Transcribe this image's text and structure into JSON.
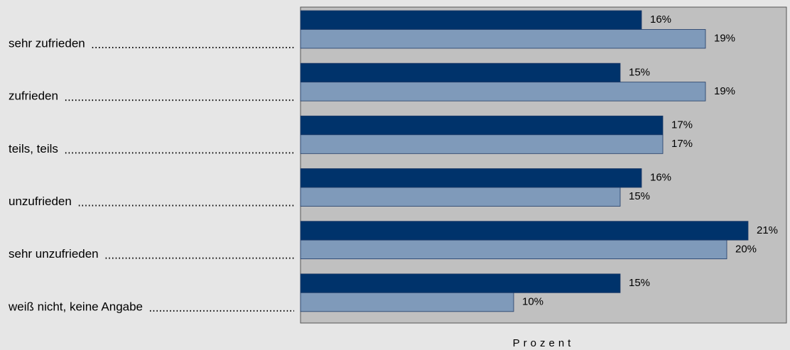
{
  "chart_data": {
    "type": "bar",
    "orientation": "horizontal",
    "categories": [
      "sehr zufrieden",
      "zufrieden",
      "teils, teils",
      "unzufrieden",
      "sehr unzufrieden",
      "weiß nicht, keine Angabe"
    ],
    "series": [
      {
        "color": "#00336b",
        "values": [
          16,
          15,
          17,
          16,
          21,
          15
        ],
        "value_labels": [
          "16%",
          "15%",
          "17%",
          "16%",
          "21%",
          "15%"
        ]
      },
      {
        "color": "#7f9aba",
        "values": [
          19,
          19,
          17,
          15,
          20,
          10
        ],
        "value_labels": [
          "19%",
          "19%",
          "17%",
          "15%",
          "20%",
          "10%"
        ]
      }
    ],
    "xlabel": "Prozent",
    "xlim": [
      0,
      22.8
    ]
  }
}
